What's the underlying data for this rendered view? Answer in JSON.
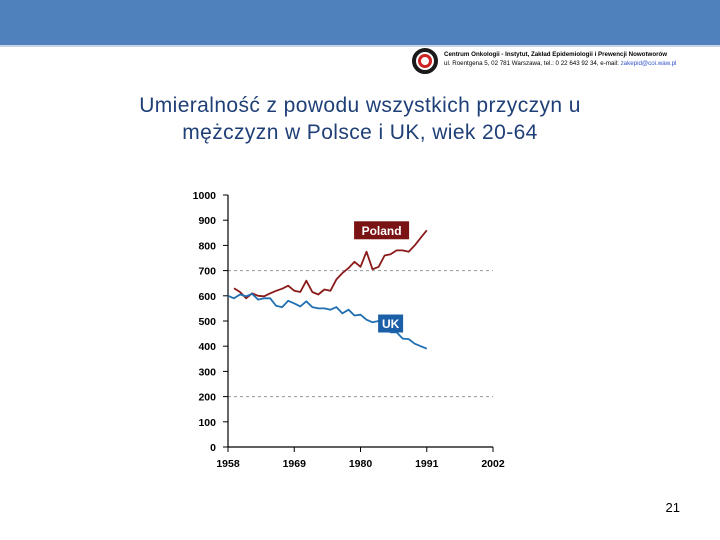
{
  "slide": {
    "title_line1": "Umieralność z powodu wszystkich przyczyn u",
    "title_line2": "mężczyzn w Polsce i UK, wiek 20-64",
    "page_number": "21"
  },
  "header": {
    "org_line1": "Centrum Onkologii - Instytut, Zakład Epidemiologii i Prewencji Nowotworów",
    "org_line2": "ul. Roentgena 5, 02 781 Warszawa, tel.: 0 22 643 92 34, e-mail: ",
    "org_email": "zakepid@coi.waw.pl",
    "accent_color": "#4f81bd",
    "logo_icon": "coi-logo-icon"
  },
  "chart_data": {
    "type": "line",
    "xlabel": "",
    "ylabel": "",
    "xlim": [
      1958,
      2002
    ],
    "ylim": [
      0,
      1000
    ],
    "xticks": [
      1958,
      1969,
      1980,
      1991,
      2002
    ],
    "yticks": [
      0,
      100,
      200,
      300,
      400,
      500,
      600,
      700,
      800,
      900,
      1000
    ],
    "reference_lines": [
      200,
      700
    ],
    "legend_placement": "inline labels",
    "series": [
      {
        "name": "Poland",
        "color": "#8b1a1a",
        "label_bg": "#7a1414",
        "x": [
          1959,
          1960,
          1961,
          1962,
          1963,
          1964,
          1965,
          1966,
          1967,
          1968,
          1969,
          1970,
          1971,
          1972,
          1973,
          1974,
          1975,
          1976,
          1977,
          1978,
          1979,
          1980,
          1981,
          1982,
          1983,
          1984,
          1985,
          1986,
          1987,
          1988,
          1989,
          1990,
          1991
        ],
        "y": [
          630,
          615,
          590,
          610,
          600,
          598,
          610,
          620,
          628,
          640,
          620,
          615,
          660,
          615,
          605,
          625,
          620,
          665,
          690,
          710,
          735,
          715,
          775,
          705,
          715,
          760,
          765,
          780,
          780,
          775,
          800,
          830,
          860
        ]
      },
      {
        "name": "UK",
        "color": "#1f6fb2",
        "label_bg": "#1a5fa8",
        "x": [
          1958,
          1959,
          1960,
          1961,
          1962,
          1963,
          1964,
          1965,
          1966,
          1967,
          1968,
          1969,
          1970,
          1971,
          1972,
          1973,
          1974,
          1975,
          1976,
          1977,
          1978,
          1979,
          1980,
          1981,
          1982,
          1983,
          1984,
          1985,
          1986,
          1987,
          1988,
          1989,
          1990,
          1991
        ],
        "y": [
          600,
          590,
          605,
          598,
          608,
          585,
          590,
          590,
          560,
          555,
          580,
          570,
          558,
          578,
          555,
          550,
          550,
          545,
          555,
          530,
          545,
          522,
          525,
          505,
          495,
          500,
          475,
          455,
          455,
          430,
          428,
          410,
          400,
          390
        ]
      }
    ]
  }
}
